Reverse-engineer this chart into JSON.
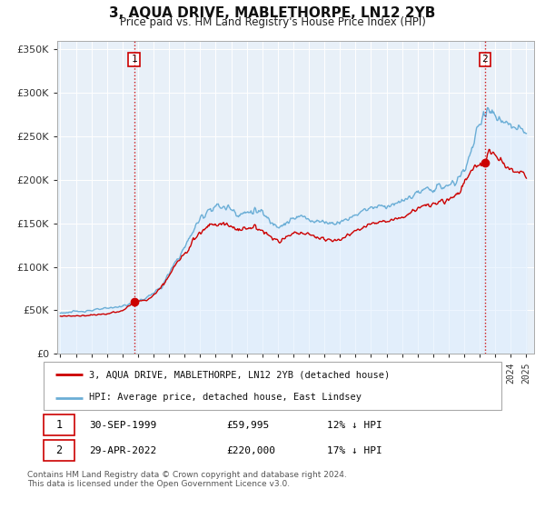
{
  "title": "3, AQUA DRIVE, MABLETHORPE, LN12 2YB",
  "subtitle": "Price paid vs. HM Land Registry's House Price Index (HPI)",
  "legend_line1": "3, AQUA DRIVE, MABLETHORPE, LN12 2YB (detached house)",
  "legend_line2": "HPI: Average price, detached house, East Lindsey",
  "annotation1_date": "30-SEP-1999",
  "annotation1_price": "£59,995",
  "annotation1_hpi": "12% ↓ HPI",
  "annotation2_date": "29-APR-2022",
  "annotation2_price": "£220,000",
  "annotation2_hpi": "17% ↓ HPI",
  "footer": "Contains HM Land Registry data © Crown copyright and database right 2024.\nThis data is licensed under the Open Government Licence v3.0.",
  "sale1_x": 1999.75,
  "sale1_y": 59995,
  "sale2_x": 2022.33,
  "sale2_y": 220000,
  "hpi_color": "#6baed6",
  "hpi_fill_color": "#ddeeff",
  "price_color": "#cc0000",
  "ylim": [
    0,
    360000
  ],
  "xlim_start": 1994.8,
  "xlim_end": 2025.5,
  "background_color": "#ffffff",
  "plot_bg_color": "#e8f0f8",
  "grid_color": "#ffffff",
  "yticks": [
    0,
    50000,
    100000,
    150000,
    200000,
    250000,
    300000,
    350000
  ]
}
